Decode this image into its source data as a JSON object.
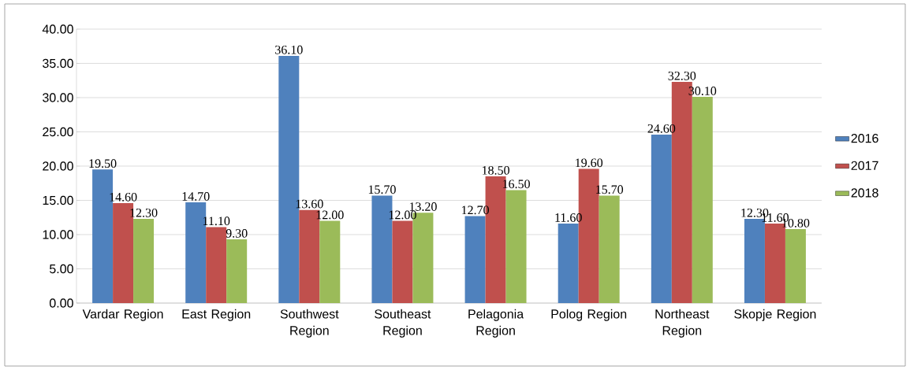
{
  "chart_data": {
    "type": "bar",
    "categories": [
      "Vardar Region",
      "East Region",
      "Southwest Region",
      "Southeast Region",
      "Pelagonia Region",
      "Polog Region",
      "Northeast Region",
      "Skopje Region"
    ],
    "series": [
      {
        "name": "2016",
        "color": "#4f81bd",
        "values": [
          19.5,
          14.7,
          36.1,
          15.7,
          12.7,
          11.6,
          24.6,
          12.3
        ],
        "value_labels": [
          "19.50",
          "14.70",
          "36.10",
          "15.70",
          "12.70",
          "11.60",
          "24.60",
          "12.30"
        ]
      },
      {
        "name": "2017",
        "color": "#c0504d",
        "values": [
          14.6,
          11.1,
          13.6,
          12.0,
          18.5,
          19.6,
          32.3,
          11.6
        ],
        "value_labels": [
          "14.60",
          "11.10",
          "13.60",
          "12.00",
          "18.50",
          "19.60",
          "32.30",
          "11.60"
        ]
      },
      {
        "name": "2018",
        "color": "#9bbb59",
        "values": [
          12.3,
          9.3,
          12.0,
          13.2,
          16.5,
          15.7,
          30.1,
          10.8
        ],
        "value_labels": [
          "12.30",
          "9.30",
          "12.00",
          "13.20",
          "16.50",
          "15.70",
          "30.10",
          "10.80"
        ]
      }
    ],
    "ylim": [
      0,
      40
    ],
    "yticks": [
      {
        "value": 0,
        "label": "0.00"
      },
      {
        "value": 5,
        "label": "5.00"
      },
      {
        "value": 10,
        "label": "10.00"
      },
      {
        "value": 15,
        "label": "15.00"
      },
      {
        "value": 20,
        "label": "20.00"
      },
      {
        "value": 25,
        "label": "25.00"
      },
      {
        "value": 30,
        "label": "30.00"
      },
      {
        "value": 35,
        "label": "35.00"
      },
      {
        "value": 40,
        "label": "40.00"
      }
    ],
    "grid": "y",
    "legend": "right"
  }
}
